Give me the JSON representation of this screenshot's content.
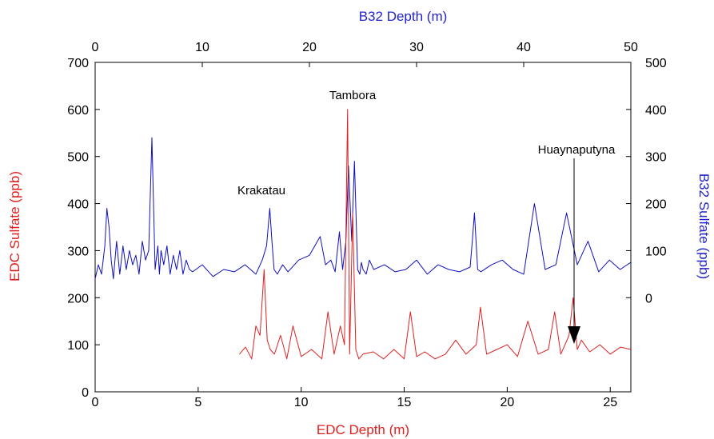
{
  "chart_data": {
    "type": "line",
    "title": "",
    "top_axis": {
      "label": "B32 Depth (m)",
      "range": [
        0,
        50
      ],
      "ticks": [
        0,
        10,
        20,
        30,
        40,
        50
      ],
      "color": "#2222cc"
    },
    "bottom_axis": {
      "label": "EDC Depth (m)",
      "range": [
        0,
        26
      ],
      "ticks": [
        0,
        5,
        10,
        15,
        20,
        25
      ],
      "color": "#e02020"
    },
    "left_axis": {
      "label": "EDC Sulfate (ppb)",
      "range": [
        0,
        700
      ],
      "ticks": [
        0,
        100,
        200,
        300,
        400,
        500,
        600,
        700
      ],
      "color": "#e02020"
    },
    "right_axis": {
      "label": "B32 Sulfate (ppb)",
      "range": [
        -200,
        500
      ],
      "ticks": [
        0,
        100,
        200,
        300,
        400,
        500
      ],
      "color": "#2222cc"
    },
    "grid": false,
    "series": [
      {
        "key": "b32",
        "color": "#1010c0",
        "axes": "top-right",
        "x": [
          0,
          0.3,
          0.6,
          0.9,
          1.1,
          1.3,
          1.5,
          1.7,
          2.0,
          2.3,
          2.6,
          2.9,
          3.2,
          3.5,
          3.8,
          4.1,
          4.4,
          4.7,
          5.0,
          5.3,
          5.6,
          5.85,
          6.0,
          6.15,
          6.4,
          6.7,
          7.0,
          7.3,
          7.6,
          7.9,
          8.2,
          8.5,
          8.8,
          9.1,
          10.0,
          11.0,
          12.0,
          13.0,
          14.0,
          15.0,
          15.6,
          16.0,
          16.3,
          16.5,
          16.7,
          17.0,
          17.5,
          18.0,
          19.0,
          20.0,
          21.0,
          21.5,
          22.0,
          22.4,
          22.8,
          23.1,
          23.4,
          23.65,
          23.8,
          23.95,
          24.2,
          24.5,
          24.7,
          24.85,
          25.0,
          25.3,
          25.6,
          26.0,
          27.0,
          28.0,
          29.0,
          30.0,
          31.0,
          32.0,
          33.0,
          34.0,
          34.5,
          35.0,
          35.2,
          35.4,
          35.7,
          36.0,
          37.0,
          38.0,
          39.0,
          40.0,
          41.0,
          42.0,
          43.0,
          44.0,
          45.0,
          46.0,
          47.0,
          48.0,
          49.0,
          50.0
        ],
        "y": [
          40,
          70,
          50,
          110,
          190,
          150,
          80,
          40,
          120,
          50,
          110,
          60,
          100,
          70,
          90,
          50,
          120,
          80,
          100,
          340,
          60,
          110,
          50,
          100,
          70,
          110,
          50,
          90,
          60,
          100,
          50,
          80,
          60,
          55,
          70,
          45,
          60,
          55,
          70,
          50,
          80,
          110,
          190,
          120,
          60,
          50,
          70,
          55,
          80,
          90,
          130,
          70,
          80,
          55,
          140,
          60,
          120,
          280,
          200,
          120,
          290,
          60,
          50,
          75,
          60,
          50,
          80,
          60,
          70,
          55,
          60,
          80,
          50,
          70,
          60,
          55,
          60,
          65,
          120,
          180,
          60,
          55,
          70,
          80,
          60,
          50,
          200,
          60,
          70,
          180,
          70,
          120,
          55,
          80,
          60,
          75
        ]
      },
      {
        "key": "edc",
        "color": "#dd2222",
        "axes": "bottom-left",
        "x": [
          7.0,
          7.3,
          7.6,
          7.8,
          8.0,
          8.2,
          8.35,
          8.5,
          8.7,
          9.0,
          9.3,
          9.6,
          10.0,
          10.5,
          11.0,
          11.3,
          11.6,
          11.9,
          12.1,
          12.25,
          12.35,
          12.5,
          12.65,
          12.8,
          13.0,
          13.5,
          14.0,
          14.5,
          15.0,
          15.3,
          15.6,
          16.0,
          16.5,
          17.0,
          17.5,
          18.0,
          18.5,
          18.7,
          19.0,
          19.5,
          20.0,
          20.5,
          21.0,
          21.5,
          22.0,
          22.3,
          22.6,
          23.0,
          23.2,
          23.4,
          23.6,
          24.0,
          24.5,
          25.0,
          25.5,
          26.0
        ],
        "y": [
          80,
          95,
          70,
          140,
          120,
          260,
          110,
          90,
          80,
          120,
          70,
          140,
          75,
          90,
          70,
          170,
          80,
          140,
          100,
          600,
          80,
          380,
          90,
          70,
          80,
          85,
          70,
          90,
          70,
          170,
          75,
          85,
          70,
          80,
          110,
          80,
          100,
          180,
          80,
          90,
          100,
          75,
          150,
          80,
          90,
          170,
          80,
          120,
          200,
          90,
          110,
          85,
          100,
          80,
          95,
          90
        ]
      }
    ],
    "annotations": [
      {
        "text": "Tambora"
      },
      {
        "text": "Krakatau"
      },
      {
        "text": "Huaynaputyna"
      }
    ]
  }
}
